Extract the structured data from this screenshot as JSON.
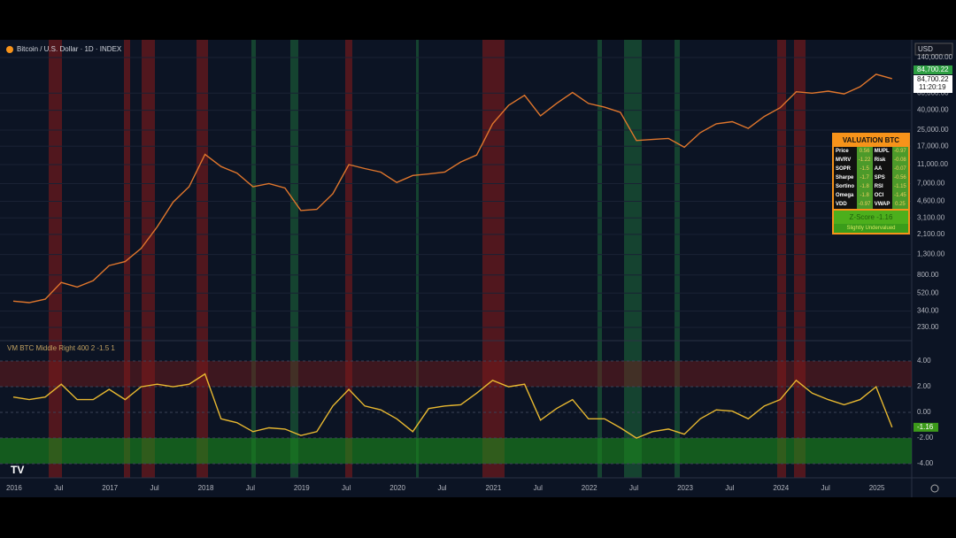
{
  "header": {
    "symbol": "Bitcoin / U.S. Dollar · 1D · INDEX",
    "currency": "USD",
    "price_badge": "84,700.22",
    "price_label": "84,700.22",
    "countdown": "11:20:19",
    "indicator": "VM BTC Middle Right 400 2 -1.5 1",
    "z_badge": "-1.16"
  },
  "valuation_table": {
    "title": "VALUATION BTC",
    "rows": [
      [
        "Price",
        "0.56",
        "MUPL",
        "-0.97"
      ],
      [
        "MVRV",
        "-1.22",
        "Risk",
        "-0.08"
      ],
      [
        "SOPR",
        "-1.5",
        "AA",
        "-0.07"
      ],
      [
        "Sharpe",
        "-1.7",
        "SPS",
        "-0.56"
      ],
      [
        "Sortino",
        "-1.8",
        "RSI",
        "-1.15"
      ],
      [
        "Omega",
        "-1.8",
        "OCI",
        "-1.45"
      ],
      [
        "VDD",
        "-0.97",
        "VWAP",
        "0.25"
      ]
    ],
    "zscore": "Z-Score  -1.16",
    "verdict": "Slightly Undervalued"
  },
  "chart_data": [
    {
      "type": "line",
      "log_scale": true,
      "categories": [
        "2016",
        null,
        null,
        "Jul",
        null,
        null,
        "2017",
        null,
        null,
        "Jul",
        null,
        null,
        "2018",
        null,
        null,
        "Jul",
        null,
        null,
        "2019",
        null,
        null,
        "Jul",
        null,
        null,
        "2020",
        null,
        null,
        "Jul",
        null,
        null,
        "2021",
        null,
        null,
        "Jul",
        null,
        null,
        "2022",
        null,
        null,
        "Jul",
        null,
        null,
        "2023",
        null,
        null,
        "Jul",
        null,
        null,
        "2024",
        null,
        null,
        "Jul",
        null,
        null,
        "2025",
        null
      ],
      "series": [
        {
          "name": "Bitcoin / U.S. Dollar",
          "color": "#e0762c",
          "values": [
            430,
            415,
            450,
            670,
            600,
            700,
            1000,
            1100,
            1500,
            2500,
            4500,
            6500,
            14000,
            10500,
            9000,
            6500,
            7000,
            6300,
            3700,
            3800,
            5500,
            11000,
            10000,
            9200,
            7200,
            8500,
            8800,
            9200,
            11700,
            13800,
            29000,
            45000,
            57000,
            35000,
            47000,
            61000,
            47000,
            43000,
            38000,
            19500,
            20000,
            20500,
            16600,
            23500,
            29000,
            30500,
            26000,
            34500,
            42500,
            62000,
            60000,
            63000,
            59000,
            70000,
            94000,
            84700.22
          ]
        }
      ],
      "ylim": [
        168,
        213000
      ],
      "yticks": [
        {
          "value": 140000,
          "label": "140,000.00"
        },
        {
          "value": 60000,
          "label": "60,000.00"
        },
        {
          "value": 40000,
          "label": "40,000.00"
        },
        {
          "value": 25000,
          "label": "25,000.00"
        },
        {
          "value": 17000,
          "label": "17,000.00"
        },
        {
          "value": 11000,
          "label": "11,000.00"
        },
        {
          "value": 7000,
          "label": "7,000.00"
        },
        {
          "value": 4600,
          "label": "4,600.00"
        },
        {
          "value": 3100,
          "label": "3,100.00"
        },
        {
          "value": 2100,
          "label": "2,100.00"
        },
        {
          "value": 1300,
          "label": "1,300.00"
        },
        {
          "value": 800,
          "label": "800.00"
        },
        {
          "value": 520,
          "label": "520.00"
        },
        {
          "value": 340,
          "label": "340.00"
        },
        {
          "value": 230,
          "label": "230.00"
        }
      ]
    },
    {
      "type": "line",
      "categories": [
        "2016",
        null,
        null,
        "Jul",
        null,
        null,
        "2017",
        null,
        null,
        "Jul",
        null,
        null,
        "2018",
        null,
        null,
        "Jul",
        null,
        null,
        "2019",
        null,
        null,
        "Jul",
        null,
        null,
        "2020",
        null,
        null,
        "Jul",
        null,
        null,
        "2021",
        null,
        null,
        "Jul",
        null,
        null,
        "2022",
        null,
        null,
        "Jul",
        null,
        null,
        "2023",
        null,
        null,
        "Jul",
        null,
        null,
        "2024",
        null,
        null,
        "Jul",
        null,
        null,
        "2025",
        null
      ],
      "series": [
        {
          "name": "Z-Score",
          "color": "#e8b830",
          "values": [
            1.2,
            1.0,
            1.2,
            2.2,
            1.0,
            1.0,
            1.8,
            1.0,
            2.0,
            2.2,
            2.0,
            2.2,
            3.0,
            -0.5,
            -0.8,
            -1.5,
            -1.2,
            -1.3,
            -1.8,
            -1.5,
            0.5,
            1.8,
            0.5,
            0.2,
            -0.5,
            -1.5,
            0.3,
            0.5,
            0.6,
            1.5,
            2.5,
            2.0,
            2.2,
            -0.6,
            0.3,
            1.0,
            -0.5,
            -0.5,
            -1.2,
            -2.0,
            -1.5,
            -1.3,
            -1.7,
            -0.5,
            0.2,
            0.1,
            -0.5,
            0.5,
            1.0,
            2.5,
            1.5,
            1.0,
            0.6,
            1.0,
            2.0,
            -1.16
          ]
        }
      ],
      "ylim": [
        -5.1,
        5.59
      ],
      "yticks": [
        {
          "value": 4,
          "label": "4.00"
        },
        {
          "value": 2,
          "label": "2.00"
        },
        {
          "value": 0,
          "label": "0.00"
        },
        {
          "value": -2,
          "label": "-2.00"
        },
        {
          "value": -4,
          "label": "-4.00"
        }
      ]
    }
  ]
}
